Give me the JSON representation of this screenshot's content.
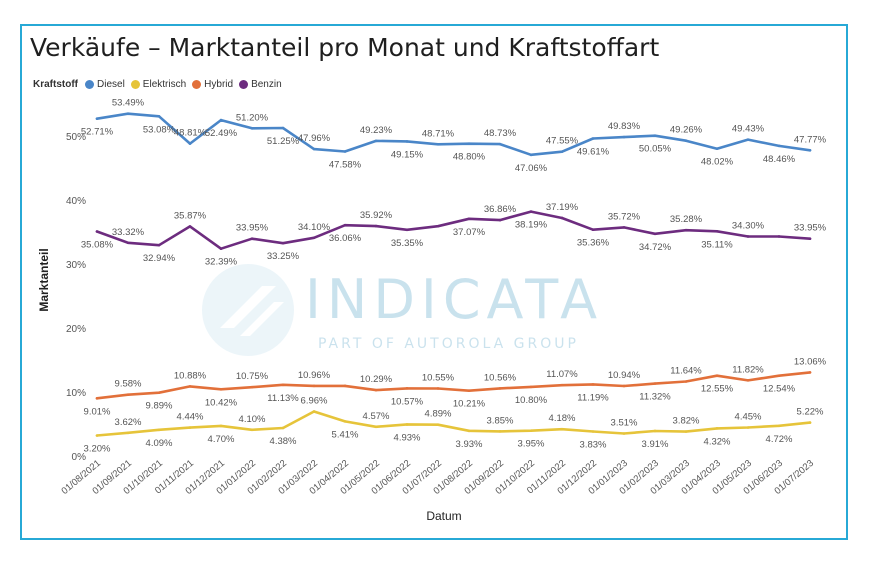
{
  "title": "Verkäufe – Marktanteil pro Monat und Kraftstoffart",
  "legend": {
    "title": "Kraftstoff",
    "items": [
      {
        "label": "Diesel",
        "color": "#4a86c8"
      },
      {
        "label": "Elektrisch",
        "color": "#e6c43a"
      },
      {
        "label": "Hybrid",
        "color": "#e2703a"
      },
      {
        "label": "Benzin",
        "color": "#6d2c7f"
      }
    ]
  },
  "watermark": {
    "brand": "INDICATA",
    "tagline": "PART OF AUTOROLA GROUP"
  },
  "chart_data": {
    "type": "line",
    "xlabel": "Datum",
    "ylabel": "Marktanteil",
    "ylim": [
      0,
      55
    ],
    "yticks": [
      "0%",
      "10%",
      "20%",
      "30%",
      "40%",
      "50%"
    ],
    "grid": false,
    "legend_position": "top-left",
    "categories": [
      "01/08/2021",
      "01/09/2021",
      "01/10/2021",
      "01/11/2021",
      "01/12/2021",
      "01/01/2022",
      "01/02/2022",
      "01/03/2022",
      "01/04/2022",
      "01/05/2022",
      "01/06/2022",
      "01/07/2022",
      "01/08/2022",
      "01/09/2022",
      "01/10/2022",
      "01/11/2022",
      "01/12/2022",
      "01/01/2023",
      "01/02/2023",
      "01/03/2023",
      "01/04/2023",
      "01/05/2023",
      "01/06/2023",
      "01/07/2023"
    ],
    "series": [
      {
        "name": "Diesel",
        "color": "#4a86c8",
        "values": [
          52.71,
          53.49,
          53.08,
          48.81,
          52.49,
          51.2,
          51.25,
          47.96,
          47.58,
          49.23,
          49.15,
          48.71,
          48.8,
          48.73,
          47.06,
          47.55,
          49.61,
          49.83,
          50.05,
          49.26,
          48.02,
          49.43,
          48.46,
          47.77
        ],
        "labels": [
          "52.71%",
          "53.49%",
          "53.08%",
          "48.81%",
          "52.49%",
          "51.20%",
          "51.25%",
          "47.96%",
          "47.58%",
          "49.23%",
          "49.15%",
          "48.71%",
          "48.80%",
          "48.73%",
          "47.06%",
          "47.55%",
          "49.61%",
          "49.83%",
          "50.05%",
          "49.26%",
          "48.02%",
          "49.43%",
          "48.46%",
          "47.77%"
        ]
      },
      {
        "name": "Benzin",
        "color": "#6d2c7f",
        "values": [
          35.08,
          33.32,
          32.94,
          35.87,
          32.39,
          33.95,
          33.25,
          34.1,
          36.06,
          35.92,
          35.35,
          35.9,
          37.07,
          36.86,
          38.19,
          37.19,
          35.36,
          35.72,
          34.72,
          35.28,
          35.11,
          34.3,
          34.3,
          33.95
        ],
        "labels": [
          "35.08%",
          "33.32%",
          "32.94%",
          "35.87%",
          "32.39%",
          "33.95%",
          "33.25%",
          "34.10%",
          "36.06%",
          "35.92%",
          "35.35%",
          "",
          "37.07%",
          "36.86%",
          "38.19%",
          "37.19%",
          "35.36%",
          "35.72%",
          "34.72%",
          "35.28%",
          "35.11%",
          "34.30%",
          "",
          "33.95%"
        ]
      },
      {
        "name": "Hybrid",
        "color": "#e2703a",
        "values": [
          9.01,
          9.58,
          9.89,
          10.88,
          10.42,
          10.75,
          11.13,
          10.96,
          10.96,
          10.29,
          10.57,
          10.55,
          10.21,
          10.56,
          10.8,
          11.07,
          11.19,
          10.94,
          11.32,
          11.64,
          12.55,
          11.82,
          12.54,
          13.06
        ],
        "labels": [
          "9.01%",
          "9.58%",
          "9.89%",
          "10.88%",
          "10.42%",
          "10.75%",
          "11.13%",
          "10.96%",
          "",
          "10.29%",
          "10.57%",
          "10.55%",
          "10.21%",
          "10.56%",
          "10.80%",
          "11.07%",
          "11.19%",
          "10.94%",
          "11.32%",
          "11.64%",
          "12.55%",
          "11.82%",
          "12.54%",
          "13.06%"
        ]
      },
      {
        "name": "Elektrisch",
        "color": "#e6c43a",
        "values": [
          3.2,
          3.62,
          4.09,
          4.44,
          4.7,
          4.1,
          4.38,
          6.96,
          5.41,
          4.57,
          4.93,
          4.89,
          3.93,
          3.85,
          3.95,
          4.18,
          3.83,
          3.51,
          3.91,
          3.82,
          4.32,
          4.45,
          4.72,
          5.22
        ],
        "labels": [
          "3.20%",
          "3.62%",
          "4.09%",
          "4.44%",
          "4.70%",
          "4.10%",
          "4.38%",
          "6.96%",
          "5.41%",
          "4.57%",
          "4.93%",
          "4.89%",
          "3.93%",
          "3.85%",
          "3.95%",
          "4.18%",
          "3.83%",
          "3.51%",
          "3.91%",
          "3.82%",
          "4.32%",
          "4.45%",
          "4.72%",
          "5.22%"
        ]
      }
    ]
  }
}
